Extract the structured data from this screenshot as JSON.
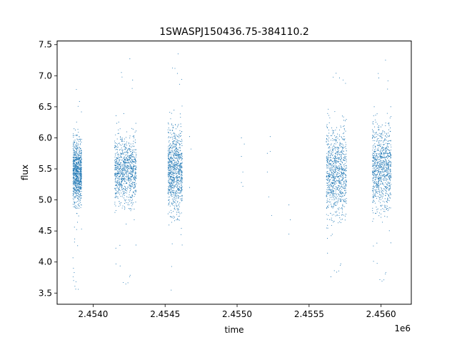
{
  "chart_data": {
    "type": "scatter",
    "title": "1SWASPJ150436.75-384110.2",
    "xlabel": "time",
    "ylabel": "flux",
    "x_offset_label": "1e6",
    "xlim": [
      2.45375,
      2.45621
    ],
    "ylim": [
      3.32,
      7.56
    ],
    "x_ticks": [
      2.454,
      2.4545,
      2.455,
      2.4555,
      2.456
    ],
    "x_tick_labels": [
      "2.4540",
      "2.4545",
      "2.4550",
      "2.4555",
      "2.4560"
    ],
    "y_ticks": [
      3.5,
      4.0,
      4.5,
      5.0,
      5.5,
      6.0,
      6.5,
      7.0,
      7.5
    ],
    "y_tick_labels": [
      "3.5",
      "4.0",
      "4.5",
      "5.0",
      "5.5",
      "6.0",
      "6.5",
      "7.0",
      "7.5"
    ],
    "grid": false,
    "marker_color": "#1f77b4",
    "clusters": [
      {
        "x_range": [
          2.45386,
          2.45392
        ],
        "y_core": [
          4.95,
          5.95
        ],
        "y_min": 3.55,
        "y_max": 6.95
      },
      {
        "x_range": [
          2.45415,
          2.4543
        ],
        "y_core": [
          4.95,
          6.0
        ],
        "y_min": 3.5,
        "y_max": 7.3
      },
      {
        "x_range": [
          2.45452,
          2.45462
        ],
        "y_core": [
          4.8,
          6.2
        ],
        "y_min": 3.48,
        "y_max": 7.38
      },
      {
        "x_range": [
          2.45562,
          2.45576
        ],
        "y_core": [
          4.75,
          6.15
        ],
        "y_min": 3.7,
        "y_max": 7.28
      },
      {
        "x_range": [
          2.45594,
          2.45607
        ],
        "y_core": [
          4.85,
          6.2
        ],
        "y_min": 3.55,
        "y_max": 7.28
      }
    ],
    "sparse_points": [
      {
        "x": 2.45467,
        "y": 6.02
      },
      {
        "x": 2.45468,
        "y": 5.82
      },
      {
        "x": 2.45467,
        "y": 5.2
      },
      {
        "x": 2.45503,
        "y": 6.0
      },
      {
        "x": 2.45503,
        "y": 5.7
      },
      {
        "x": 2.45503,
        "y": 5.28
      },
      {
        "x": 2.45504,
        "y": 5.22
      },
      {
        "x": 2.45505,
        "y": 5.9
      },
      {
        "x": 2.45504,
        "y": 5.45
      },
      {
        "x": 2.45521,
        "y": 5.45
      },
      {
        "x": 2.45521,
        "y": 5.75
      },
      {
        "x": 2.45522,
        "y": 5.05
      },
      {
        "x": 2.45523,
        "y": 5.78
      },
      {
        "x": 2.45523,
        "y": 6.02
      },
      {
        "x": 2.45524,
        "y": 4.75
      },
      {
        "x": 2.45536,
        "y": 4.92
      },
      {
        "x": 2.45537,
        "y": 4.68
      },
      {
        "x": 2.45536,
        "y": 4.45
      }
    ]
  }
}
